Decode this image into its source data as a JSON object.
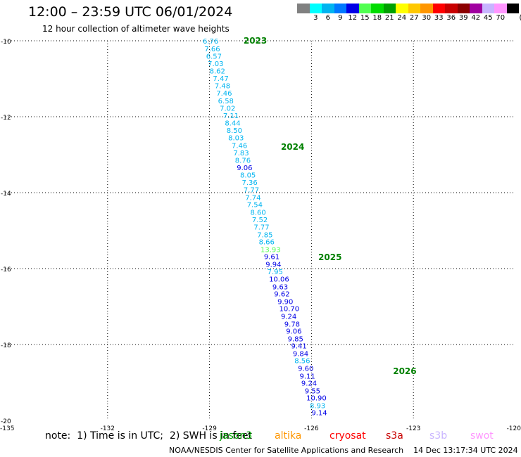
{
  "header": {
    "title": "12:00 – 23:59 UTC 06/01/2024",
    "subtitle": "12 hour collection of altimeter wave heights"
  },
  "legend": {
    "unit": "(ft)",
    "swatches": [
      {
        "color": "#808080",
        "label": ""
      },
      {
        "color": "#00ffff",
        "label": "3"
      },
      {
        "color": "#00b4f0",
        "label": "6"
      },
      {
        "color": "#0078ff",
        "label": "9"
      },
      {
        "color": "#0000e6",
        "label": "12"
      },
      {
        "color": "#50ff50",
        "label": "15"
      },
      {
        "color": "#00dc00",
        "label": "18"
      },
      {
        "color": "#00a000",
        "label": "21"
      },
      {
        "color": "#ffff00",
        "label": "24"
      },
      {
        "color": "#ffc800",
        "label": "27"
      },
      {
        "color": "#ff9600",
        "label": "30"
      },
      {
        "color": "#ff0000",
        "label": "33"
      },
      {
        "color": "#c80000",
        "label": "36"
      },
      {
        "color": "#8c0000",
        "label": "39"
      },
      {
        "color": "#a000a0",
        "label": "42"
      },
      {
        "color": "#c8b4ff",
        "label": "45"
      },
      {
        "color": "#ff96ff",
        "label": "70"
      },
      {
        "color": "#000000",
        "label": ""
      }
    ]
  },
  "footer": {
    "note": "note:  1) Time is in UTC;  2) SWH is in feet",
    "credit": "NOAA/NESDIS Center for Satellite Applications and Research    14 Dec 13:17:34 UTC 2024"
  },
  "satellites": [
    {
      "name": "jason3",
      "color": "#00a000"
    },
    {
      "name": "altika",
      "color": "#ff9600"
    },
    {
      "name": "cryosat",
      "color": "#ff0000"
    },
    {
      "name": "s3a",
      "color": "#c80000"
    },
    {
      "name": "s3b",
      "color": "#c8b4ff"
    },
    {
      "name": "swot",
      "color": "#ff96ff"
    }
  ],
  "chart_data": {
    "type": "scatter",
    "xlim": [
      -135,
      -120
    ],
    "ylim": [
      -20,
      -10
    ],
    "x_ticks": [
      "-135",
      "-132",
      "-129",
      "-126",
      "-123",
      "-120"
    ],
    "y_ticks": [
      "-10",
      "-12",
      "-14",
      "-16",
      "-18",
      "-20"
    ],
    "grid": true,
    "time_labels": [
      {
        "text": "2023",
        "lon": -128.0,
        "lat": -10.0
      },
      {
        "text": "2024",
        "lon": -126.9,
        "lat": -12.8
      },
      {
        "text": "2025",
        "lon": -125.8,
        "lat": -15.7
      },
      {
        "text": "2026",
        "lon": -123.6,
        "lat": -18.7
      }
    ],
    "points": [
      {
        "lon": -129.2,
        "lat": -10.0,
        "swh": "6.76",
        "color": "#00b4f0"
      },
      {
        "lon": -129.15,
        "lat": -10.2,
        "swh": "7.66",
        "color": "#00b4f0"
      },
      {
        "lon": -129.1,
        "lat": -10.4,
        "swh": "6.57",
        "color": "#00b4f0"
      },
      {
        "lon": -129.05,
        "lat": -10.59,
        "swh": "7.03",
        "color": "#00b4f0"
      },
      {
        "lon": -129.0,
        "lat": -10.79,
        "swh": "8.62",
        "color": "#00b4f0"
      },
      {
        "lon": -128.9,
        "lat": -10.98,
        "swh": "7.47",
        "color": "#00b4f0"
      },
      {
        "lon": -128.85,
        "lat": -11.18,
        "swh": "7.48",
        "color": "#00b4f0"
      },
      {
        "lon": -128.8,
        "lat": -11.37,
        "swh": "7.46",
        "color": "#00b4f0"
      },
      {
        "lon": -128.75,
        "lat": -11.57,
        "swh": "6.58",
        "color": "#00b4f0"
      },
      {
        "lon": -128.7,
        "lat": -11.77,
        "swh": "7.02",
        "color": "#00b4f0"
      },
      {
        "lon": -128.6,
        "lat": -11.96,
        "swh": "7.11",
        "color": "#00b4f0"
      },
      {
        "lon": -128.55,
        "lat": -12.16,
        "swh": "8.44",
        "color": "#00b4f0"
      },
      {
        "lon": -128.5,
        "lat": -12.35,
        "swh": "8.50",
        "color": "#00b4f0"
      },
      {
        "lon": -128.45,
        "lat": -12.55,
        "swh": "8.03",
        "color": "#00b4f0"
      },
      {
        "lon": -128.35,
        "lat": -12.75,
        "swh": "7.46",
        "color": "#00b4f0"
      },
      {
        "lon": -128.3,
        "lat": -12.94,
        "swh": "7.83",
        "color": "#00b4f0"
      },
      {
        "lon": -128.25,
        "lat": -13.14,
        "swh": "8.76",
        "color": "#00b4f0"
      },
      {
        "lon": -128.2,
        "lat": -13.33,
        "swh": "9.06",
        "color": "#0000e6"
      },
      {
        "lon": -128.1,
        "lat": -13.53,
        "swh": "8.05",
        "color": "#00b4f0"
      },
      {
        "lon": -128.05,
        "lat": -13.72,
        "swh": "7.36",
        "color": "#00b4f0"
      },
      {
        "lon": -128.0,
        "lat": -13.92,
        "swh": "7.77",
        "color": "#00b4f0"
      },
      {
        "lon": -127.95,
        "lat": -14.12,
        "swh": "7.74",
        "color": "#00b4f0"
      },
      {
        "lon": -127.9,
        "lat": -14.31,
        "swh": "7.54",
        "color": "#00b4f0"
      },
      {
        "lon": -127.8,
        "lat": -14.51,
        "swh": "8.60",
        "color": "#00b4f0"
      },
      {
        "lon": -127.75,
        "lat": -14.7,
        "swh": "7.52",
        "color": "#00b4f0"
      },
      {
        "lon": -127.7,
        "lat": -14.9,
        "swh": "7.77",
        "color": "#00b4f0"
      },
      {
        "lon": -127.6,
        "lat": -15.1,
        "swh": "7.85",
        "color": "#00b4f0"
      },
      {
        "lon": -127.55,
        "lat": -15.29,
        "swh": "8.66",
        "color": "#00b4f0"
      },
      {
        "lon": -127.5,
        "lat": -15.49,
        "swh": "13.93",
        "color": "#50ff50"
      },
      {
        "lon": -127.4,
        "lat": -15.68,
        "swh": "9.61",
        "color": "#0000e6"
      },
      {
        "lon": -127.35,
        "lat": -15.88,
        "swh": "9.94",
        "color": "#0000e6"
      },
      {
        "lon": -127.3,
        "lat": -16.07,
        "swh": "7.95",
        "color": "#00b4f0"
      },
      {
        "lon": -127.25,
        "lat": -16.27,
        "swh": "10.06",
        "color": "#0000e6"
      },
      {
        "lon": -127.15,
        "lat": -16.47,
        "swh": "9.63",
        "color": "#0000e6"
      },
      {
        "lon": -127.1,
        "lat": -16.66,
        "swh": "9.62",
        "color": "#0000e6"
      },
      {
        "lon": -127.0,
        "lat": -16.86,
        "swh": "9.90",
        "color": "#0000e6"
      },
      {
        "lon": -126.95,
        "lat": -17.05,
        "swh": "10.70",
        "color": "#0000e6"
      },
      {
        "lon": -126.9,
        "lat": -17.25,
        "swh": "9.24",
        "color": "#0000e6"
      },
      {
        "lon": -126.8,
        "lat": -17.45,
        "swh": "9.78",
        "color": "#0000e6"
      },
      {
        "lon": -126.75,
        "lat": -17.64,
        "swh": "9.06",
        "color": "#0000e6"
      },
      {
        "lon": -126.7,
        "lat": -17.84,
        "swh": "9.85",
        "color": "#0000e6"
      },
      {
        "lon": -126.6,
        "lat": -18.03,
        "swh": "9.41",
        "color": "#0000e6"
      },
      {
        "lon": -126.55,
        "lat": -18.23,
        "swh": "9.84",
        "color": "#0000e6"
      },
      {
        "lon": -126.5,
        "lat": -18.42,
        "swh": "8.56",
        "color": "#00b4f0"
      },
      {
        "lon": -126.4,
        "lat": -18.62,
        "swh": "9.60",
        "color": "#0000e6"
      },
      {
        "lon": -126.35,
        "lat": -18.82,
        "swh": "9.11",
        "color": "#0000e6"
      },
      {
        "lon": -126.3,
        "lat": -19.01,
        "swh": "9.24",
        "color": "#0000e6"
      },
      {
        "lon": -126.2,
        "lat": -19.21,
        "swh": "9.55",
        "color": "#0000e6"
      },
      {
        "lon": -126.15,
        "lat": -19.4,
        "swh": "10.90",
        "color": "#0000e6"
      },
      {
        "lon": -126.05,
        "lat": -19.6,
        "swh": "8.93",
        "color": "#00b4f0"
      },
      {
        "lon": -126.0,
        "lat": -19.79,
        "swh": "9.14",
        "color": "#0000e6"
      }
    ]
  }
}
